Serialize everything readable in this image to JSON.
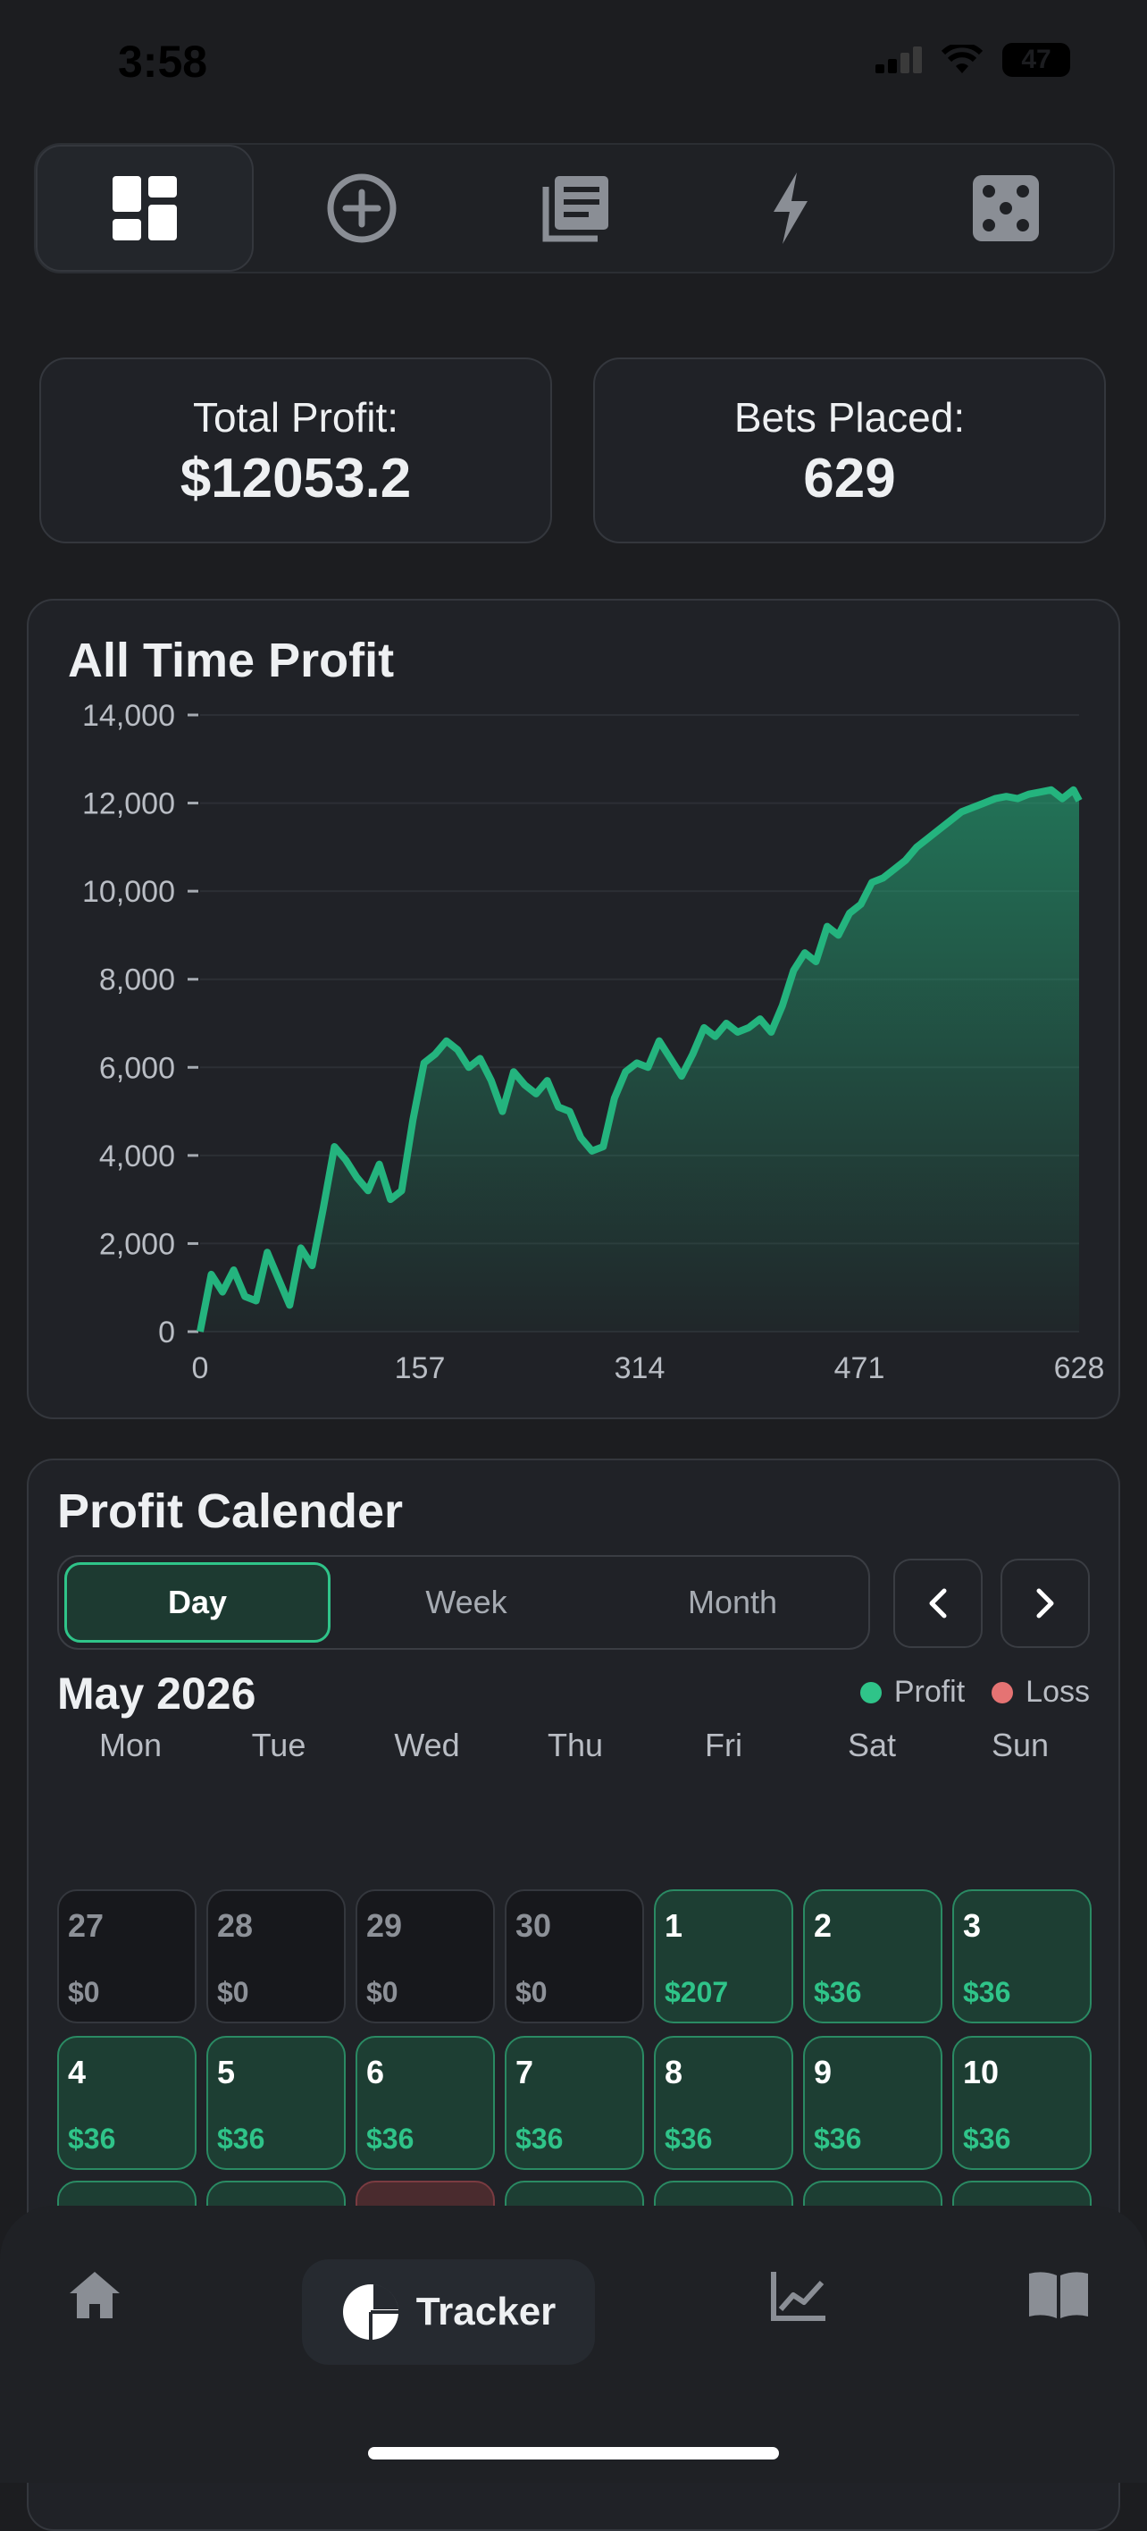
{
  "status_bar": {
    "time": "3:58",
    "battery": "47"
  },
  "top_tabs": [
    "dashboard-icon",
    "add-circle-icon",
    "news-icon",
    "bolt-icon",
    "dice-icon"
  ],
  "stats": [
    {
      "label": "Total Profit:",
      "value": "$12053.2"
    },
    {
      "label": "Bets Placed:",
      "value": "629"
    }
  ],
  "chart": {
    "title": "All Time Profit"
  },
  "chart_data": {
    "type": "area",
    "title": "All Time Profit",
    "xlabel": "",
    "ylabel": "",
    "xlim": [
      0,
      628
    ],
    "ylim": [
      0,
      14000
    ],
    "x_ticks": [
      "0",
      "157",
      "314",
      "471",
      "628"
    ],
    "y_ticks": [
      "0",
      "2,000",
      "4,000",
      "6,000",
      "8,000",
      "10,000",
      "12,000",
      "14,000"
    ],
    "grid": true,
    "color": "#24b47e",
    "series": [
      {
        "x": [
          0,
          8,
          16,
          24,
          32,
          40,
          48,
          56,
          64,
          72,
          80,
          88,
          96,
          104,
          112,
          120,
          128,
          136,
          144,
          152,
          160,
          168,
          176,
          184,
          192,
          200,
          208,
          216,
          224,
          232,
          240,
          248,
          256,
          264,
          272,
          280,
          288,
          296,
          304,
          312,
          320,
          328,
          336,
          344,
          352,
          360,
          368,
          376,
          384,
          392,
          400,
          408,
          416,
          424,
          432,
          440,
          448,
          456,
          464,
          472,
          480,
          488,
          496,
          504,
          512,
          520,
          528,
          536,
          544,
          552,
          560,
          568,
          576,
          584,
          592,
          600,
          608,
          616,
          624,
          628
        ],
        "values": [
          0,
          1300,
          900,
          1400,
          800,
          700,
          1800,
          1200,
          600,
          1900,
          1500,
          2800,
          4200,
          3900,
          3500,
          3200,
          3800,
          3000,
          3200,
          4800,
          6100,
          6300,
          6600,
          6400,
          6000,
          6200,
          5700,
          5000,
          5900,
          5600,
          5400,
          5700,
          5100,
          5000,
          4400,
          4100,
          4200,
          5300,
          5900,
          6100,
          6000,
          6600,
          6200,
          5800,
          6300,
          6900,
          6700,
          7000,
          6800,
          6900,
          7100,
          6800,
          7400,
          8200,
          8600,
          8400,
          9200,
          9000,
          9500,
          9700,
          10200,
          10300,
          10500,
          10700,
          11000,
          11200,
          11400,
          11600,
          11800,
          11900,
          12000,
          12100,
          12150,
          12100,
          12200,
          12250,
          12300,
          12100,
          12300,
          12053.2
        ]
      }
    ]
  },
  "calendar": {
    "title": "Profit Calender",
    "modes": [
      "Day",
      "Week",
      "Month"
    ],
    "active_mode": "Day",
    "month_label": "May 2026",
    "legend": {
      "profit": "Profit",
      "loss": "Loss",
      "profit_color": "#2fc489",
      "loss_color": "#e57373"
    },
    "weekdays": [
      "Mon",
      "Tue",
      "Wed",
      "Thu",
      "Fri",
      "Sat",
      "Sun"
    ],
    "week1": [
      {
        "n": "27",
        "p": "$0",
        "type": "empty"
      },
      {
        "n": "28",
        "p": "$0",
        "type": "empty"
      },
      {
        "n": "29",
        "p": "$0",
        "type": "empty"
      },
      {
        "n": "30",
        "p": "$0",
        "type": "empty"
      },
      {
        "n": "1",
        "p": "$207",
        "type": "profit"
      },
      {
        "n": "2",
        "p": "$36",
        "type": "profit"
      },
      {
        "n": "3",
        "p": "$36",
        "type": "profit"
      }
    ],
    "week2": [
      {
        "n": "4",
        "p": "$36",
        "type": "profit"
      },
      {
        "n": "5",
        "p": "$36",
        "type": "profit"
      },
      {
        "n": "6",
        "p": "$36",
        "type": "profit"
      },
      {
        "n": "7",
        "p": "$36",
        "type": "profit"
      },
      {
        "n": "8",
        "p": "$36",
        "type": "profit"
      },
      {
        "n": "9",
        "p": "$36",
        "type": "profit"
      },
      {
        "n": "10",
        "p": "$36",
        "type": "profit"
      }
    ],
    "week3_types": [
      "profit",
      "profit",
      "loss",
      "profit",
      "profit",
      "profit",
      "profit"
    ]
  },
  "bottom_nav": {
    "active_label": "Tracker"
  }
}
